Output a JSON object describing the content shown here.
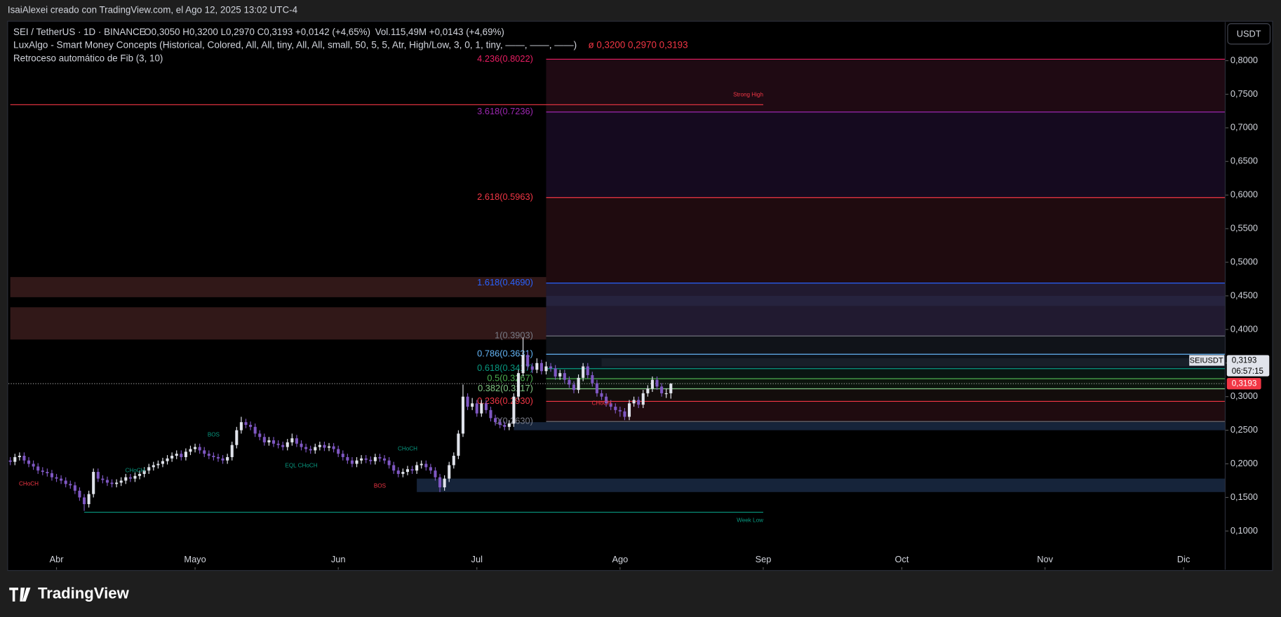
{
  "header": "IsaiAlexei creado con TradingView.com, el Ago 12, 2025 13:02 UTC-4",
  "brand": "TradingView",
  "currency_button": "USDT",
  "chart_data": {
    "type": "candlestick",
    "legend": {
      "symbol": "SEI / TetherUS · 1D · BINANCE",
      "ohlc": "O0,3050 H0,3200 L0,2970 C0,3193 +0,0142 (+4,65%)",
      "volume": "Vol.115,49M +0,0143 (+4,69%)",
      "indicator1": "LuxAlgo - Smart Money Concepts (Historical, Colored, All, All, tiny, All, All, small, 50, 5, 5, Atr, High/Low, 3, 0, 1, tiny, ——, ——, ——)",
      "indicator1_values": "ø  0,3200  0,2970  0,3193",
      "indicator2": "Retroceso automático de Fib (3, 10)"
    },
    "up_color": "#e0e3eb",
    "down_color": "#7e57c2",
    "xlim": [
      -0.4,
      263
    ],
    "xticks": [
      {
        "value": 10,
        "label": "Abr"
      },
      {
        "value": 40,
        "label": "Mayo"
      },
      {
        "value": 71,
        "label": "Jun"
      },
      {
        "value": 101,
        "label": "Jul"
      },
      {
        "value": 132,
        "label": "Ago"
      },
      {
        "value": 163,
        "label": "Sep"
      },
      {
        "value": 193,
        "label": "Oct"
      },
      {
        "value": 224,
        "label": "Nov"
      },
      {
        "value": 254,
        "label": "Dic"
      }
    ],
    "ylim": [
      0.0425,
      0.8575
    ],
    "yticks": [
      {
        "value": 0.8,
        "label": "0,8000"
      },
      {
        "value": 0.75,
        "label": "0,7500"
      },
      {
        "value": 0.7,
        "label": "0,7000"
      },
      {
        "value": 0.65,
        "label": "0,6500"
      },
      {
        "value": 0.6,
        "label": "0,6000"
      },
      {
        "value": 0.55,
        "label": "0,5500"
      },
      {
        "value": 0.5,
        "label": "0,5000"
      },
      {
        "value": 0.45,
        "label": "0,4500"
      },
      {
        "value": 0.4,
        "label": "0,4000"
      },
      {
        "value": 0.35,
        "label": "0,3500"
      },
      {
        "value": 0.3,
        "label": "0,3000"
      },
      {
        "value": 0.25,
        "label": "0,2500"
      },
      {
        "value": 0.2,
        "label": "0,2000"
      },
      {
        "value": 0.15,
        "label": "0,1500"
      },
      {
        "value": 0.1,
        "label": "0,1000"
      }
    ],
    "candles": [
      [
        0.205,
        0.21,
        0.198,
        0.203
      ],
      [
        0.203,
        0.215,
        0.198,
        0.21
      ],
      [
        0.21,
        0.217,
        0.205,
        0.212
      ],
      [
        0.212,
        0.217,
        0.2,
        0.205
      ],
      [
        0.205,
        0.21,
        0.195,
        0.2
      ],
      [
        0.2,
        0.205,
        0.191,
        0.196
      ],
      [
        0.196,
        0.201,
        0.185,
        0.19
      ],
      [
        0.19,
        0.195,
        0.183,
        0.188
      ],
      [
        0.188,
        0.193,
        0.181,
        0.186
      ],
      [
        0.186,
        0.191,
        0.175,
        0.18
      ],
      [
        0.18,
        0.185,
        0.173,
        0.178
      ],
      [
        0.178,
        0.183,
        0.17,
        0.175
      ],
      [
        0.175,
        0.18,
        0.165,
        0.17
      ],
      [
        0.17,
        0.175,
        0.163,
        0.168
      ],
      [
        0.168,
        0.173,
        0.155,
        0.16
      ],
      [
        0.16,
        0.165,
        0.145,
        0.15
      ],
      [
        0.15,
        0.155,
        0.13,
        0.14
      ],
      [
        0.14,
        0.16,
        0.135,
        0.155
      ],
      [
        0.155,
        0.193,
        0.15,
        0.188
      ],
      [
        0.188,
        0.193,
        0.173,
        0.178
      ],
      [
        0.178,
        0.183,
        0.171,
        0.176
      ],
      [
        0.176,
        0.181,
        0.167,
        0.172
      ],
      [
        0.172,
        0.177,
        0.165,
        0.17
      ],
      [
        0.17,
        0.177,
        0.165,
        0.172
      ],
      [
        0.172,
        0.18,
        0.167,
        0.175
      ],
      [
        0.175,
        0.185,
        0.17,
        0.18
      ],
      [
        0.18,
        0.185,
        0.173,
        0.178
      ],
      [
        0.178,
        0.187,
        0.173,
        0.182
      ],
      [
        0.182,
        0.19,
        0.177,
        0.185
      ],
      [
        0.185,
        0.195,
        0.18,
        0.19
      ],
      [
        0.19,
        0.2,
        0.185,
        0.195
      ],
      [
        0.195,
        0.203,
        0.19,
        0.198
      ],
      [
        0.198,
        0.205,
        0.193,
        0.2
      ],
      [
        0.2,
        0.209,
        0.195,
        0.204
      ],
      [
        0.204,
        0.213,
        0.199,
        0.208
      ],
      [
        0.208,
        0.217,
        0.203,
        0.212
      ],
      [
        0.212,
        0.22,
        0.207,
        0.215
      ],
      [
        0.215,
        0.22,
        0.205,
        0.21
      ],
      [
        0.21,
        0.223,
        0.205,
        0.218
      ],
      [
        0.218,
        0.227,
        0.213,
        0.222
      ],
      [
        0.222,
        0.23,
        0.217,
        0.225
      ],
      [
        0.225,
        0.23,
        0.215,
        0.22
      ],
      [
        0.22,
        0.225,
        0.21,
        0.215
      ],
      [
        0.215,
        0.22,
        0.207,
        0.212
      ],
      [
        0.212,
        0.217,
        0.205,
        0.21
      ],
      [
        0.21,
        0.215,
        0.203,
        0.208
      ],
      [
        0.208,
        0.213,
        0.2,
        0.205
      ],
      [
        0.205,
        0.215,
        0.2,
        0.21
      ],
      [
        0.21,
        0.233,
        0.205,
        0.228
      ],
      [
        0.228,
        0.255,
        0.223,
        0.25
      ],
      [
        0.25,
        0.27,
        0.245,
        0.262
      ],
      [
        0.262,
        0.267,
        0.253,
        0.258
      ],
      [
        0.258,
        0.263,
        0.25,
        0.255
      ],
      [
        0.255,
        0.26,
        0.24,
        0.245
      ],
      [
        0.245,
        0.25,
        0.235,
        0.24
      ],
      [
        0.24,
        0.245,
        0.227,
        0.232
      ],
      [
        0.232,
        0.24,
        0.227,
        0.235
      ],
      [
        0.235,
        0.24,
        0.225,
        0.23
      ],
      [
        0.23,
        0.235,
        0.223,
        0.228
      ],
      [
        0.228,
        0.233,
        0.22,
        0.225
      ],
      [
        0.225,
        0.237,
        0.22,
        0.232
      ],
      [
        0.232,
        0.245,
        0.227,
        0.238
      ],
      [
        0.238,
        0.243,
        0.225,
        0.23
      ],
      [
        0.23,
        0.235,
        0.22,
        0.225
      ],
      [
        0.225,
        0.23,
        0.217,
        0.222
      ],
      [
        0.222,
        0.227,
        0.215,
        0.22
      ],
      [
        0.22,
        0.23,
        0.215,
        0.225
      ],
      [
        0.225,
        0.233,
        0.22,
        0.228
      ],
      [
        0.228,
        0.233,
        0.219,
        0.224
      ],
      [
        0.224,
        0.231,
        0.219,
        0.226
      ],
      [
        0.226,
        0.231,
        0.217,
        0.222
      ],
      [
        0.222,
        0.227,
        0.21,
        0.215
      ],
      [
        0.215,
        0.22,
        0.205,
        0.21
      ],
      [
        0.21,
        0.215,
        0.2,
        0.205
      ],
      [
        0.205,
        0.21,
        0.195,
        0.2
      ],
      [
        0.2,
        0.21,
        0.195,
        0.205
      ],
      [
        0.205,
        0.213,
        0.2,
        0.208
      ],
      [
        0.208,
        0.213,
        0.201,
        0.206
      ],
      [
        0.206,
        0.211,
        0.199,
        0.204
      ],
      [
        0.204,
        0.215,
        0.199,
        0.21
      ],
      [
        0.21,
        0.215,
        0.203,
        0.208
      ],
      [
        0.208,
        0.213,
        0.2,
        0.205
      ],
      [
        0.205,
        0.21,
        0.193,
        0.198
      ],
      [
        0.198,
        0.203,
        0.185,
        0.19
      ],
      [
        0.19,
        0.195,
        0.18,
        0.185
      ],
      [
        0.185,
        0.193,
        0.18,
        0.188
      ],
      [
        0.188,
        0.197,
        0.183,
        0.192
      ],
      [
        0.192,
        0.197,
        0.185,
        0.19
      ],
      [
        0.19,
        0.203,
        0.185,
        0.198
      ],
      [
        0.198,
        0.205,
        0.193,
        0.2
      ],
      [
        0.2,
        0.205,
        0.19,
        0.195
      ],
      [
        0.195,
        0.2,
        0.185,
        0.19
      ],
      [
        0.19,
        0.195,
        0.175,
        0.18
      ],
      [
        0.18,
        0.185,
        0.158,
        0.165
      ],
      [
        0.165,
        0.183,
        0.16,
        0.178
      ],
      [
        0.178,
        0.203,
        0.173,
        0.198
      ],
      [
        0.198,
        0.217,
        0.193,
        0.212
      ],
      [
        0.212,
        0.25,
        0.207,
        0.245
      ],
      [
        0.245,
        0.318,
        0.24,
        0.3
      ],
      [
        0.3,
        0.305,
        0.28,
        0.285
      ],
      [
        0.285,
        0.298,
        0.28,
        0.29
      ],
      [
        0.29,
        0.295,
        0.27,
        0.275
      ],
      [
        0.275,
        0.295,
        0.27,
        0.29
      ],
      [
        0.29,
        0.295,
        0.275,
        0.28
      ],
      [
        0.28,
        0.285,
        0.263,
        0.268
      ],
      [
        0.268,
        0.273,
        0.257,
        0.262
      ],
      [
        0.262,
        0.267,
        0.253,
        0.258
      ],
      [
        0.258,
        0.263,
        0.25,
        0.255
      ],
      [
        0.255,
        0.265,
        0.25,
        0.26
      ],
      [
        0.26,
        0.305,
        0.255,
        0.3
      ],
      [
        0.3,
        0.34,
        0.295,
        0.335
      ],
      [
        0.335,
        0.388,
        0.33,
        0.362
      ],
      [
        0.362,
        0.367,
        0.34,
        0.345
      ],
      [
        0.345,
        0.35,
        0.335,
        0.34
      ],
      [
        0.34,
        0.357,
        0.335,
        0.35
      ],
      [
        0.35,
        0.355,
        0.333,
        0.338
      ],
      [
        0.338,
        0.352,
        0.333,
        0.345
      ],
      [
        0.345,
        0.35,
        0.337,
        0.342
      ],
      [
        0.342,
        0.347,
        0.325,
        0.33
      ],
      [
        0.33,
        0.34,
        0.325,
        0.335
      ],
      [
        0.335,
        0.34,
        0.32,
        0.325
      ],
      [
        0.325,
        0.33,
        0.313,
        0.318
      ],
      [
        0.318,
        0.323,
        0.305,
        0.31
      ],
      [
        0.31,
        0.333,
        0.305,
        0.328
      ],
      [
        0.328,
        0.35,
        0.323,
        0.345
      ],
      [
        0.345,
        0.35,
        0.327,
        0.332
      ],
      [
        0.332,
        0.337,
        0.315,
        0.32
      ],
      [
        0.32,
        0.325,
        0.3,
        0.305
      ],
      [
        0.305,
        0.31,
        0.295,
        0.3
      ],
      [
        0.3,
        0.305,
        0.285,
        0.29
      ],
      [
        0.29,
        0.295,
        0.28,
        0.285
      ],
      [
        0.285,
        0.29,
        0.275,
        0.28
      ],
      [
        0.28,
        0.285,
        0.27,
        0.278
      ],
      [
        0.278,
        0.283,
        0.265,
        0.27
      ],
      [
        0.27,
        0.295,
        0.265,
        0.29
      ],
      [
        0.29,
        0.3,
        0.285,
        0.295
      ],
      [
        0.295,
        0.3,
        0.283,
        0.288
      ],
      [
        0.288,
        0.31,
        0.283,
        0.305
      ],
      [
        0.305,
        0.317,
        0.3,
        0.312
      ],
      [
        0.312,
        0.33,
        0.307,
        0.325
      ],
      [
        0.325,
        0.33,
        0.31,
        0.315
      ],
      [
        0.315,
        0.32,
        0.3,
        0.305
      ],
      [
        0.305,
        0.312,
        0.298,
        0.305
      ],
      [
        0.305,
        0.32,
        0.297,
        0.3193
      ]
    ],
    "fib_start": 116,
    "fib_levels": [
      {
        "label": "4.236(0.8022)",
        "value": 0.8022,
        "color": "#e91e63",
        "fill": "#2a0d1a"
      },
      {
        "label": "3.618(0.7236)",
        "value": 0.7236,
        "color": "#9c27b0",
        "fill": "#1c0e2a"
      },
      {
        "label": "2.618(0.5963)",
        "value": 0.5963,
        "color": "#f23645",
        "fill": "#2a0f14"
      },
      {
        "label": "1.618(0.4690)",
        "value": 0.469,
        "color": "#2962ff",
        "fill": "#2c2340"
      },
      {
        "label": "1(0.3903)",
        "value": 0.3903,
        "color": "#787b86",
        "fill": "#151a22"
      },
      {
        "label": "0.786(0.3631)",
        "value": 0.3631,
        "color": "#64b5f6",
        "fill": "#101a26"
      },
      {
        "label": "0.618(0.3417)",
        "value": 0.3417,
        "color": "#089981",
        "fill": "#0d1c18"
      },
      {
        "label": "0.5(0.3267)",
        "value": 0.3267,
        "color": "#4caf50",
        "fill": "#101c12"
      },
      {
        "label": "0.382(0.3117)",
        "value": 0.3117,
        "color": "#81c784",
        "fill": "#1a1210"
      },
      {
        "label": "0.236(0.2930)",
        "value": 0.293,
        "color": "#f23645",
        "fill": "#2a0f14"
      },
      {
        "label": "0(0.2630)",
        "value": 0.263,
        "color": "#787b86",
        "fill": "#000000"
      }
    ],
    "zones": [
      {
        "from": 0,
        "to": 116,
        "top": 0.478,
        "bottom": 0.448,
        "color": "#3a1c1c"
      },
      {
        "from": 0,
        "to": 116,
        "top": 0.433,
        "bottom": 0.385,
        "color": "#3a1c1c"
      },
      {
        "from": 116,
        "to": 263,
        "top": 0.45,
        "bottom": 0.435,
        "color": "#1a2a44"
      },
      {
        "from": 109,
        "to": 263,
        "top": 0.262,
        "bottom": 0.25,
        "color": "#1a2a44"
      },
      {
        "from": 88,
        "to": 263,
        "top": 0.178,
        "bottom": 0.158,
        "color": "#1a2a44"
      },
      {
        "from": 128,
        "to": 263,
        "top": 0.357,
        "bottom": 0.345,
        "color": "#3b3b3f"
      }
    ],
    "strong_high": {
      "label": "Strong High",
      "value": 0.7345,
      "from": 0,
      "to": 163,
      "color": "#f23645"
    },
    "weak_low": {
      "label": "Week Low",
      "value": 0.128,
      "from": 16,
      "to": 163,
      "color": "#089981"
    },
    "structure_labels": [
      {
        "text": "CHoCH",
        "x": 4,
        "y": 0.17,
        "color": "#f23645"
      },
      {
        "text": "CHoCH",
        "x": 27,
        "y": 0.19,
        "color": "#089981"
      },
      {
        "text": "BOS",
        "x": 44,
        "y": 0.243,
        "color": "#089981"
      },
      {
        "text": "EQL CHoCH",
        "x": 63,
        "y": 0.197,
        "color": "#089981"
      },
      {
        "text": "BOS",
        "x": 80,
        "y": 0.167,
        "color": "#f23645"
      },
      {
        "text": "CHoCH",
        "x": 86,
        "y": 0.222,
        "color": "#089981"
      },
      {
        "text": "CHoCH",
        "x": 128,
        "y": 0.29,
        "color": "#f23645"
      }
    ],
    "last_price": {
      "value": 0.3193,
      "label": "0,3193",
      "symbol": "SEIUSDT",
      "countdown": "06:57:15",
      "color": "#f23645"
    }
  }
}
